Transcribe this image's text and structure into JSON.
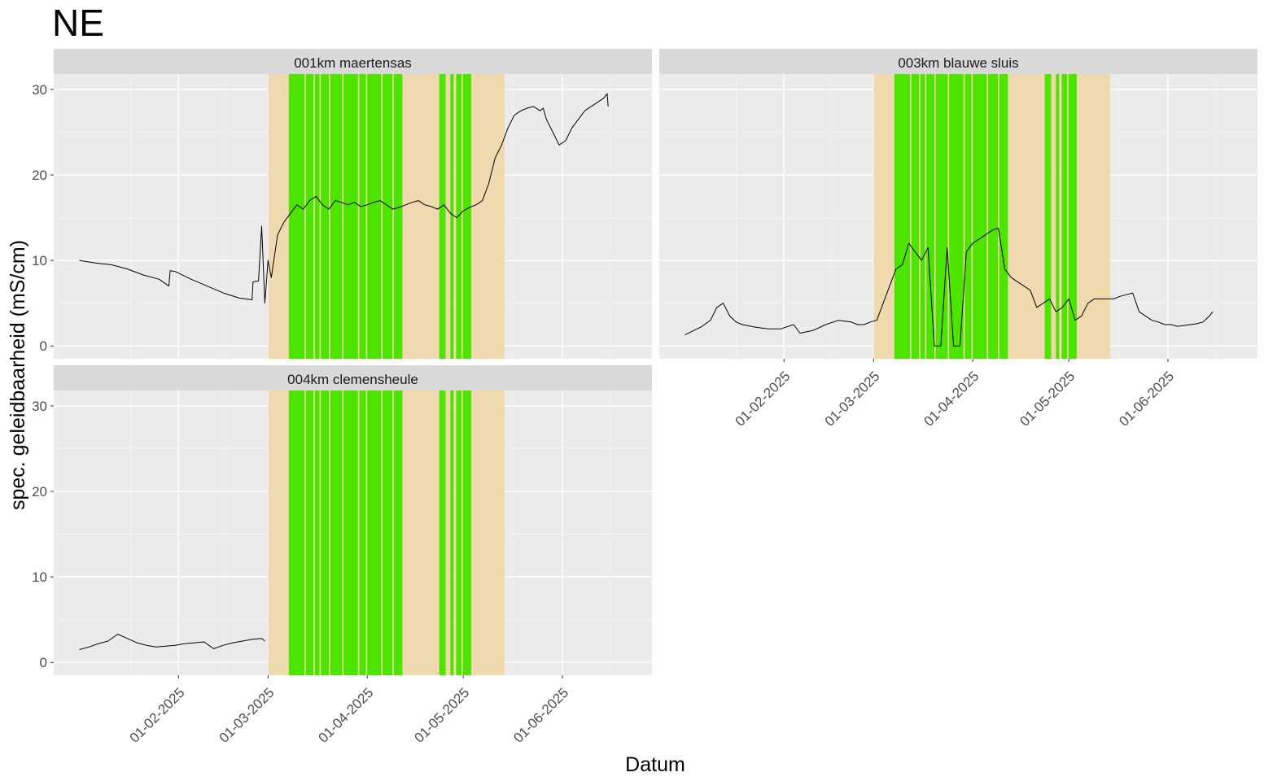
{
  "title": "NE",
  "chart_data": {
    "type": "line",
    "title": "NE",
    "xlabel": "Datum",
    "ylabel": "spec. geleidbaarheid (mS/cm)",
    "x_tick_labels": [
      "01-02-2025",
      "01-03-2025",
      "01-04-2025",
      "01-05-2025",
      "01-06-2025"
    ],
    "x_ticks_day": [
      31,
      59,
      90,
      120,
      151
    ],
    "xlim_day": [
      -8,
      179
    ],
    "ylim": [
      -1.5,
      31.8
    ],
    "y_ticks": [
      0,
      10,
      20,
      30
    ],
    "grid": true,
    "shade_band": {
      "color": "#f0d7a7",
      "from_day": 59,
      "to_day": 133
    },
    "green_periods": {
      "color": "#4de400",
      "ranges": [
        [
          65.5,
          101
        ],
        [
          112.5,
          114.5
        ],
        [
          116,
          117
        ],
        [
          117.8,
          122.5
        ]
      ],
      "gaps": [
        70.6,
        73.4,
        75.3,
        78.2,
        82.4,
        87.3,
        89.8,
        94.6,
        98.1,
        115.3,
        119.7
      ]
    },
    "panels": [
      {
        "name": "001km maertensas",
        "series": [
          {
            "x_day": [
              0,
              5,
              10,
              15,
              20,
              25,
              28,
              28.4,
              30,
              35,
              40,
              45,
              50,
              54,
              54.3,
              56,
              57,
              58,
              59,
              60,
              62,
              64,
              66,
              68,
              70,
              72,
              74,
              76,
              78,
              80,
              82,
              84,
              86,
              88,
              90,
              92,
              94,
              96,
              98,
              100,
              102,
              104,
              106,
              108,
              110,
              112,
              114,
              116,
              118,
              120,
              122,
              124,
              126,
              128,
              130,
              132,
              134,
              136,
              138,
              140,
              142,
              144,
              145,
              146,
              148,
              150,
              152,
              154,
              156,
              158,
              160,
              162,
              164,
              165,
              165.3
            ],
            "y": [
              10,
              9.7,
              9.5,
              9.0,
              8.3,
              7.8,
              7.0,
              8.8,
              8.7,
              7.8,
              7.0,
              6.2,
              5.6,
              5.4,
              7.5,
              7.6,
              14.0,
              5.0,
              10.0,
              8.0,
              13.0,
              14.5,
              15.5,
              16.5,
              16.0,
              17.0,
              17.5,
              16.5,
              16.0,
              17.0,
              16.8,
              16.5,
              16.8,
              16.3,
              16.5,
              16.8,
              17.0,
              16.5,
              16.0,
              16.2,
              16.5,
              16.8,
              17.0,
              16.5,
              16.3,
              16.0,
              16.5,
              15.5,
              15.0,
              15.8,
              16.2,
              16.5,
              17.0,
              19.0,
              22.0,
              23.5,
              25.5,
              27.0,
              27.5,
              27.8,
              28.0,
              27.5,
              27.8,
              26.5,
              25.0,
              23.5,
              24.0,
              25.5,
              26.5,
              27.5,
              28.0,
              28.5,
              29.0,
              29.5,
              28.0
            ]
          }
        ]
      },
      {
        "name": "003km blauwe sluis",
        "series": [
          {
            "x_day": [
              0,
              5,
              8,
              10,
              12,
              14,
              16,
              18,
              22,
              26,
              30,
              34,
              36,
              40,
              44,
              48,
              52,
              54,
              56,
              58,
              60,
              62,
              64,
              66,
              68,
              70,
              72,
              74,
              76,
              78,
              80,
              82,
              84,
              86,
              88,
              90,
              92,
              94,
              96,
              98,
              100,
              102,
              104,
              106,
              108,
              110,
              112,
              114,
              116,
              118,
              120,
              122,
              124,
              126,
              128,
              130,
              132,
              134,
              136,
              138,
              140,
              142,
              144,
              146,
              148,
              150,
              152,
              154,
              156,
              158,
              160,
              162,
              164,
              165
            ],
            "y": [
              1.3,
              2.2,
              3.0,
              4.5,
              5.0,
              3.5,
              2.8,
              2.5,
              2.2,
              2.0,
              2.0,
              2.5,
              1.5,
              1.8,
              2.5,
              3.0,
              2.8,
              2.5,
              2.5,
              2.8,
              3.0,
              5.0,
              7.0,
              9.0,
              9.5,
              12.0,
              11.0,
              10.0,
              11.5,
              0.0,
              0.0,
              11.5,
              0.0,
              0.0,
              11.0,
              12.0,
              12.5,
              13.0,
              13.5,
              13.8,
              9.0,
              8.0,
              7.5,
              7.0,
              6.5,
              4.5,
              5.0,
              5.5,
              4.0,
              4.5,
              5.5,
              3.0,
              3.5,
              5.0,
              5.5,
              5.5,
              5.5,
              5.5,
              5.8,
              6.0,
              6.2,
              4.0,
              3.5,
              3.0,
              2.8,
              2.5,
              2.5,
              2.3,
              2.4,
              2.5,
              2.6,
              2.8,
              3.5,
              4.0
            ]
          }
        ]
      },
      {
        "name": "004km clemensheule",
        "series": [
          {
            "x_day": [
              0,
              3,
              6,
              9,
              12,
              15,
              18,
              21,
              24,
              27,
              30,
              33,
              36,
              39,
              42,
              45,
              48,
              51,
              54,
              57,
              58
            ],
            "y": [
              1.5,
              1.8,
              2.2,
              2.5,
              3.3,
              2.8,
              2.3,
              2.0,
              1.8,
              1.9,
              2.0,
              2.2,
              2.3,
              2.4,
              1.6,
              2.0,
              2.3,
              2.5,
              2.7,
              2.8,
              2.5
            ]
          }
        ]
      }
    ]
  }
}
